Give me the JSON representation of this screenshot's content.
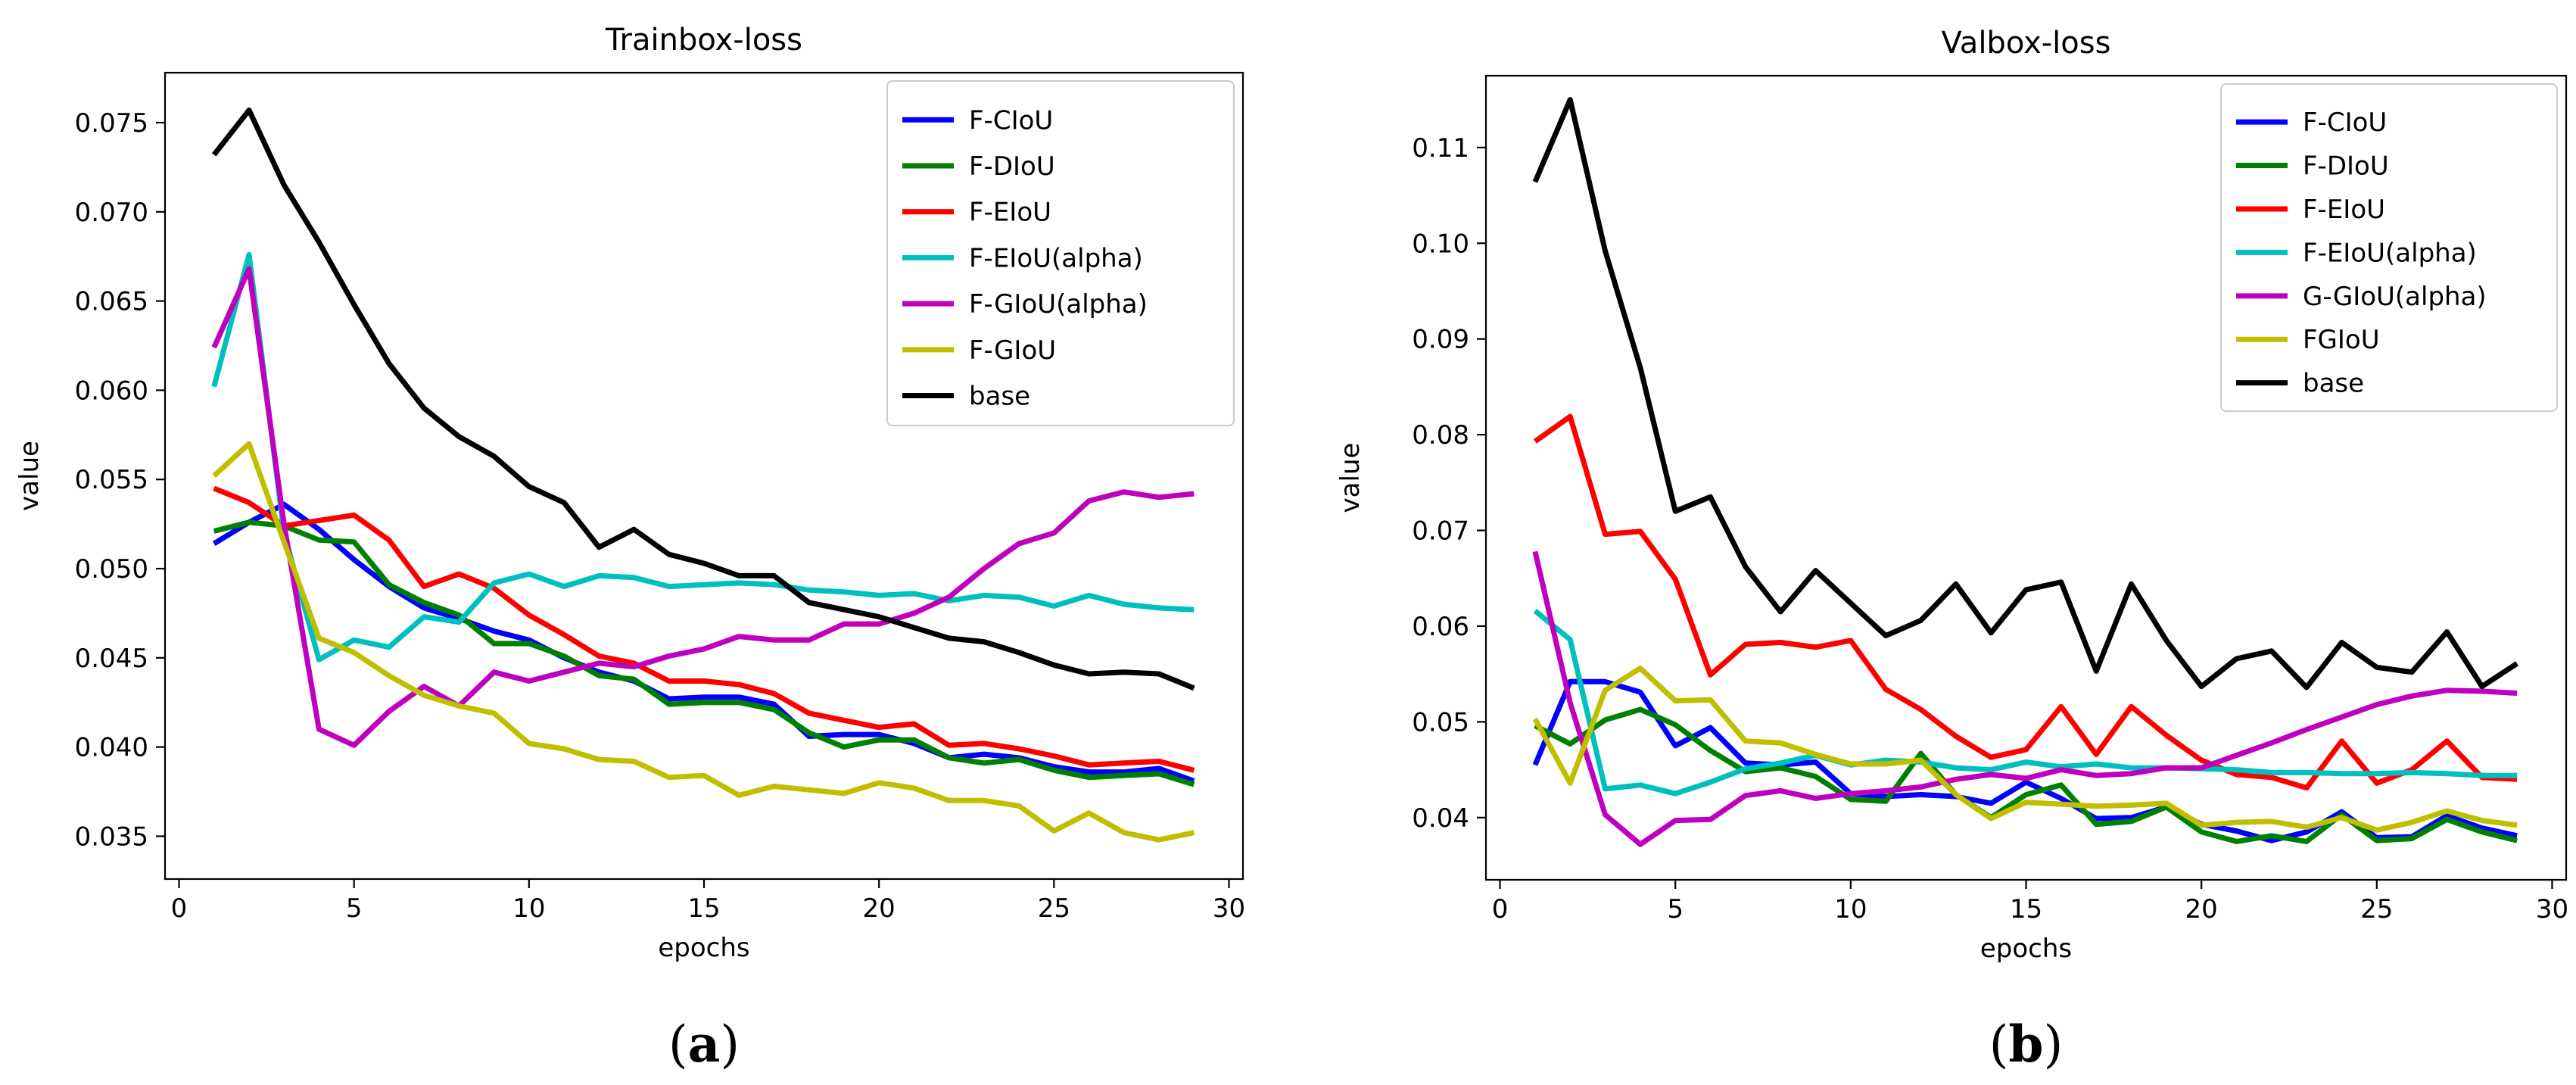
{
  "charts": [
    {
      "panel_label": "a",
      "title": "Trainbox-loss",
      "xlabel": "epochs",
      "ylabel": "value",
      "x_ticks": [
        0,
        5,
        10,
        15,
        20,
        25,
        30
      ],
      "y_ticks": [
        0.035,
        0.04,
        0.045,
        0.05,
        0.055,
        0.06,
        0.065,
        0.07,
        0.075
      ],
      "y_decimals": 3
    },
    {
      "panel_label": "b",
      "title": "Valbox-loss",
      "xlabel": "epochs",
      "ylabel": "value",
      "x_ticks": [
        0,
        5,
        10,
        15,
        20,
        25,
        30
      ],
      "y_ticks": [
        0.04,
        0.05,
        0.06,
        0.07,
        0.08,
        0.09,
        0.1,
        0.11
      ],
      "y_decimals": 2
    }
  ],
  "chart_data": [
    {
      "type": "line",
      "title": "Trainbox-loss",
      "xlabel": "epochs",
      "ylabel": "value",
      "xlim": [
        -0.4,
        30.4
      ],
      "ylim": [
        0.0326,
        0.0778
      ],
      "grid": false,
      "legend_position": "top-right",
      "x": [
        1,
        2,
        3,
        4,
        5,
        6,
        7,
        8,
        9,
        10,
        11,
        12,
        13,
        14,
        15,
        16,
        17,
        18,
        19,
        20,
        21,
        22,
        23,
        24,
        25,
        26,
        27,
        28,
        29
      ],
      "series": [
        {
          "name": "F-CIoU",
          "color": "#0000ff",
          "values": [
            0.0514,
            0.0526,
            0.0536,
            0.0522,
            0.0505,
            0.049,
            0.0478,
            0.0472,
            0.0465,
            0.046,
            0.045,
            0.0442,
            0.0437,
            0.0427,
            0.0428,
            0.0428,
            0.0424,
            0.0406,
            0.0407,
            0.0407,
            0.0402,
            0.0394,
            0.0396,
            0.0394,
            0.0389,
            0.0386,
            0.0386,
            0.0388,
            0.0381
          ]
        },
        {
          "name": "F-DIoU",
          "color": "#008000",
          "values": [
            0.0521,
            0.0526,
            0.0524,
            0.0516,
            0.0515,
            0.0491,
            0.0481,
            0.0474,
            0.0458,
            0.0458,
            0.0451,
            0.044,
            0.0438,
            0.0424,
            0.0425,
            0.0425,
            0.0421,
            0.0408,
            0.04,
            0.0404,
            0.0404,
            0.0394,
            0.0391,
            0.0393,
            0.0387,
            0.0383,
            0.0384,
            0.0385,
            0.0379
          ]
        },
        {
          "name": "F-EIoU",
          "color": "#ff0000",
          "values": [
            0.0545,
            0.0537,
            0.0524,
            0.0527,
            0.053,
            0.0516,
            0.049,
            0.0497,
            0.0489,
            0.0474,
            0.0463,
            0.0451,
            0.0447,
            0.0437,
            0.0437,
            0.0435,
            0.043,
            0.0419,
            0.0415,
            0.0411,
            0.0413,
            0.0401,
            0.0402,
            0.0399,
            0.0395,
            0.039,
            0.0391,
            0.0392,
            0.0387
          ]
        },
        {
          "name": "F-EIoU(alpha)",
          "color": "#00bfbf",
          "values": [
            0.0602,
            0.0676,
            0.052,
            0.0449,
            0.046,
            0.0456,
            0.0473,
            0.047,
            0.0492,
            0.0497,
            0.049,
            0.0496,
            0.0495,
            0.049,
            0.0491,
            0.0492,
            0.0491,
            0.0488,
            0.0487,
            0.0485,
            0.0486,
            0.0482,
            0.0485,
            0.0484,
            0.0479,
            0.0485,
            0.048,
            0.0478,
            0.0477
          ]
        },
        {
          "name": "F-GIoU(alpha)",
          "color": "#bf00bf",
          "values": [
            0.0624,
            0.0668,
            0.0525,
            0.041,
            0.0401,
            0.042,
            0.0434,
            0.0423,
            0.0442,
            0.0437,
            0.0442,
            0.0447,
            0.0445,
            0.0451,
            0.0455,
            0.0462,
            0.046,
            0.046,
            0.0469,
            0.0469,
            0.0475,
            0.0484,
            0.05,
            0.0514,
            0.052,
            0.0538,
            0.0543,
            0.054,
            0.0542
          ]
        },
        {
          "name": "F-GIoU",
          "color": "#bfbf00",
          "values": [
            0.0552,
            0.057,
            0.0515,
            0.0461,
            0.0453,
            0.044,
            0.0429,
            0.0423,
            0.0419,
            0.0402,
            0.0399,
            0.0393,
            0.0392,
            0.0383,
            0.0384,
            0.0373,
            0.0378,
            0.0376,
            0.0374,
            0.038,
            0.0377,
            0.037,
            0.037,
            0.0367,
            0.0353,
            0.0363,
            0.0352,
            0.0348,
            0.0352
          ]
        },
        {
          "name": "base",
          "color": "#000000",
          "values": [
            0.0732,
            0.0757,
            0.0715,
            0.0683,
            0.0648,
            0.0615,
            0.059,
            0.0574,
            0.0563,
            0.0546,
            0.0537,
            0.0512,
            0.0522,
            0.0508,
            0.0503,
            0.0496,
            0.0496,
            0.0481,
            0.0477,
            0.0473,
            0.0467,
            0.0461,
            0.0459,
            0.0453,
            0.0446,
            0.0441,
            0.0442,
            0.0441,
            0.0433
          ]
        }
      ]
    },
    {
      "type": "line",
      "title": "Valbox-loss",
      "xlabel": "epochs",
      "ylabel": "value",
      "xlim": [
        -0.4,
        30.4
      ],
      "ylim": [
        0.0335,
        0.1175
      ],
      "grid": false,
      "legend_position": "top-right",
      "x": [
        1,
        2,
        3,
        4,
        5,
        6,
        7,
        8,
        9,
        10,
        11,
        12,
        13,
        14,
        15,
        16,
        17,
        18,
        19,
        20,
        21,
        22,
        23,
        24,
        25,
        26,
        27,
        28,
        29
      ],
      "series": [
        {
          "name": "F-CIoU",
          "color": "#0000ff",
          "values": [
            0.0455,
            0.0542,
            0.0542,
            0.0531,
            0.0475,
            0.0494,
            0.0457,
            0.0455,
            0.0458,
            0.0425,
            0.0422,
            0.0424,
            0.0422,
            0.0415,
            0.0437,
            0.042,
            0.0399,
            0.04,
            0.0411,
            0.0393,
            0.0386,
            0.0376,
            0.0385,
            0.0406,
            0.0379,
            0.038,
            0.0402,
            0.0389,
            0.0381
          ]
        },
        {
          "name": "F-DIoU",
          "color": "#008000",
          "values": [
            0.0496,
            0.0477,
            0.0502,
            0.0513,
            0.0497,
            0.047,
            0.0448,
            0.0452,
            0.0443,
            0.0419,
            0.0417,
            0.0467,
            0.0424,
            0.04,
            0.0424,
            0.0434,
            0.0393,
            0.0396,
            0.0411,
            0.0385,
            0.0375,
            0.0381,
            0.0375,
            0.0403,
            0.0376,
            0.0378,
            0.0398,
            0.0385,
            0.0376
          ]
        },
        {
          "name": "F-EIoU",
          "color": "#ff0000",
          "values": [
            0.0793,
            0.0819,
            0.0696,
            0.0699,
            0.0649,
            0.0549,
            0.0581,
            0.0583,
            0.0578,
            0.0585,
            0.0534,
            0.0513,
            0.0485,
            0.0463,
            0.0471,
            0.0516,
            0.0466,
            0.0516,
            0.0486,
            0.046,
            0.0445,
            0.0442,
            0.0431,
            0.048,
            0.0436,
            0.045,
            0.048,
            0.0442,
            0.044
          ]
        },
        {
          "name": "F-EIoU(alpha)",
          "color": "#00bfbf",
          "values": [
            0.0616,
            0.0586,
            0.043,
            0.0434,
            0.0425,
            0.0437,
            0.0451,
            0.0457,
            0.0465,
            0.0455,
            0.046,
            0.0458,
            0.0452,
            0.045,
            0.0458,
            0.0453,
            0.0456,
            0.0452,
            0.0452,
            0.0451,
            0.045,
            0.0447,
            0.0447,
            0.0446,
            0.0446,
            0.0447,
            0.0446,
            0.0444,
            0.0444
          ]
        },
        {
          "name": "G-GIoU(alpha)",
          "color": "#bf00bf",
          "values": [
            0.0678,
            0.052,
            0.0403,
            0.0372,
            0.0397,
            0.0398,
            0.0423,
            0.0428,
            0.042,
            0.0425,
            0.0428,
            0.0432,
            0.044,
            0.0445,
            0.0441,
            0.045,
            0.0444,
            0.0446,
            0.0452,
            0.0452,
            0.0465,
            0.0478,
            0.0492,
            0.0505,
            0.0518,
            0.0527,
            0.0533,
            0.0532,
            0.053
          ]
        },
        {
          "name": "FGIoU",
          "color": "#bfbf00",
          "values": [
            0.0503,
            0.0436,
            0.0533,
            0.0556,
            0.0522,
            0.0523,
            0.048,
            0.0478,
            0.0466,
            0.0456,
            0.0456,
            0.046,
            0.0424,
            0.0399,
            0.0416,
            0.0414,
            0.0412,
            0.0413,
            0.0415,
            0.0392,
            0.0395,
            0.0396,
            0.039,
            0.04,
            0.0387,
            0.0395,
            0.0407,
            0.0397,
            0.0392
          ]
        },
        {
          "name": "base",
          "color": "#000000",
          "values": [
            0.1064,
            0.115,
            0.0992,
            0.087,
            0.072,
            0.0735,
            0.0662,
            0.0615,
            0.0658,
            0.0624,
            0.059,
            0.0606,
            0.0644,
            0.0593,
            0.0638,
            0.0646,
            0.0553,
            0.0644,
            0.0585,
            0.0537,
            0.0566,
            0.0574,
            0.0536,
            0.0583,
            0.0557,
            0.0552,
            0.0594,
            0.0537,
            0.0561
          ]
        }
      ]
    }
  ]
}
